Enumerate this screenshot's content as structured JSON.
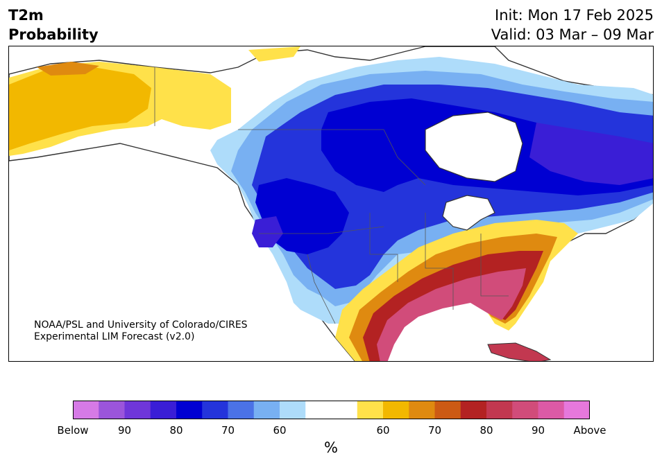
{
  "header": {
    "variable": "T2m",
    "subtitle": "Probability",
    "init": "Init: Mon 17 Feb 2025",
    "valid": "Valid: 03 Mar – 09 Mar"
  },
  "credit": {
    "line1": "NOAA/PSL and University of Colorado/CIRES",
    "line2": "Experimental LIM Forecast (v2.0)"
  },
  "colorbar": {
    "unit": "%",
    "ticks": [
      "Below",
      "90",
      "80",
      "70",
      "60",
      "60",
      "70",
      "80",
      "90",
      "Above"
    ],
    "colors": [
      "#d67ae6",
      "#9b55db",
      "#6f36d9",
      "#3a1ed6",
      "#0000d2",
      "#2434db",
      "#4b72e6",
      "#78b0f2",
      "#aedcfa",
      "#ffffff",
      "#ffffff",
      "#ffe14a",
      "#f2b800",
      "#df8a10",
      "#cc5a14",
      "#b32222",
      "#c23850",
      "#d14c7a",
      "#dc5aa6",
      "#e678dc"
    ]
  },
  "colors": {
    "ocean": "#ffffff",
    "land_neutral": "#ffffff",
    "coast": "#333333",
    "border": "#555555"
  }
}
